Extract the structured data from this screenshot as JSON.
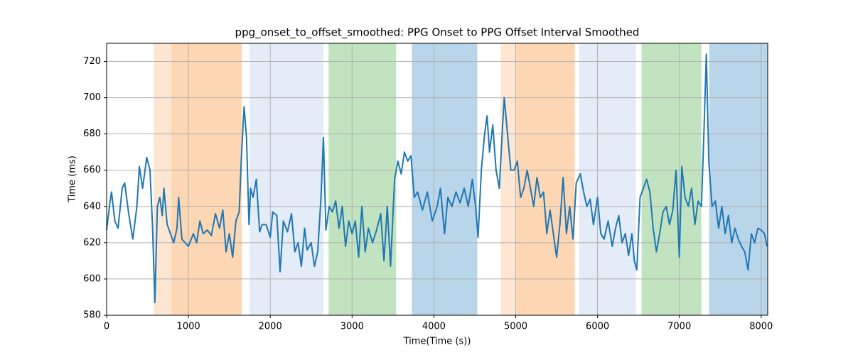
{
  "chart_data": {
    "type": "line",
    "title": "ppg_onset_to_offset_smoothed: PPG Onset to PPG Offset Interval Smoothed",
    "x_label": "Time(Time (s))",
    "y_label": "Time (ms)",
    "color": "#1f77b4",
    "grid": true,
    "xlim": [
      0,
      8080
    ],
    "ylim": [
      580,
      730
    ],
    "xticks": [
      0,
      1000,
      2000,
      3000,
      4000,
      5000,
      6000,
      7000,
      8000
    ],
    "yticks": [
      580,
      600,
      620,
      640,
      660,
      680,
      700,
      720
    ],
    "spans": [
      {
        "start": 574,
        "end": 791,
        "color": "#fde6d2"
      },
      {
        "start": 791,
        "end": 1652,
        "color": "#fdd7b4"
      },
      {
        "start": 1748,
        "end": 2652,
        "color": "#e4ecf7"
      },
      {
        "start": 2713,
        "end": 3539,
        "color": "#c1e3c0"
      },
      {
        "start": 3730,
        "end": 4530,
        "color": "#b9d5e9"
      },
      {
        "start": 4817,
        "end": 5009,
        "color": "#fde6d2"
      },
      {
        "start": 5009,
        "end": 5722,
        "color": "#fdd7b4"
      },
      {
        "start": 5774,
        "end": 6470,
        "color": "#e4ecf7"
      },
      {
        "start": 6539,
        "end": 7270,
        "color": "#c1e3c0"
      },
      {
        "start": 7365,
        "end": 8080,
        "color": "#b9d5e9"
      }
    ],
    "x": [
      0,
      40,
      60,
      100,
      140,
      190,
      220,
      270,
      320,
      370,
      400,
      440,
      490,
      530,
      560,
      590,
      620,
      650,
      680,
      700,
      740,
      780,
      820,
      860,
      880,
      920,
      960,
      1000,
      1060,
      1100,
      1140,
      1180,
      1230,
      1280,
      1330,
      1380,
      1420,
      1460,
      1500,
      1540,
      1580,
      1620,
      1650,
      1680,
      1710,
      1740,
      1760,
      1790,
      1830,
      1870,
      1900,
      1950,
      2000,
      2030,
      2080,
      2120,
      2160,
      2210,
      2260,
      2300,
      2340,
      2380,
      2420,
      2450,
      2500,
      2540,
      2580,
      2620,
      2650,
      2680,
      2720,
      2760,
      2800,
      2840,
      2880,
      2920,
      2960,
      3000,
      3040,
      3080,
      3120,
      3160,
      3200,
      3250,
      3300,
      3350,
      3390,
      3430,
      3470,
      3520,
      3560,
      3600,
      3640,
      3680,
      3720,
      3760,
      3800,
      3860,
      3920,
      3980,
      4040,
      4080,
      4130,
      4170,
      4220,
      4270,
      4320,
      4370,
      4420,
      4470,
      4510,
      4540,
      4580,
      4620,
      4650,
      4680,
      4720,
      4760,
      4800,
      4840,
      4860,
      4900,
      4940,
      4980,
      5020,
      5060,
      5100,
      5140,
      5180,
      5220,
      5260,
      5300,
      5340,
      5380,
      5420,
      5460,
      5500,
      5540,
      5580,
      5620,
      5660,
      5700,
      5740,
      5790,
      5830,
      5870,
      5910,
      5950,
      6000,
      6040,
      6080,
      6130,
      6180,
      6220,
      6260,
      6300,
      6340,
      6380,
      6420,
      6450,
      6480,
      6520,
      6560,
      6600,
      6640,
      6680,
      6720,
      6760,
      6800,
      6840,
      6880,
      6920,
      6960,
      7000,
      7030,
      7070,
      7110,
      7150,
      7190,
      7230,
      7270,
      7300,
      7330,
      7360,
      7400,
      7440,
      7480,
      7520,
      7560,
      7600,
      7640,
      7680,
      7720,
      7760,
      7800,
      7840,
      7880,
      7920,
      7960,
      8000,
      8040,
      8070
    ],
    "values": [
      627,
      642,
      648,
      632,
      628,
      650,
      653,
      636,
      622,
      640,
      662,
      650,
      667,
      660,
      630,
      587,
      640,
      645,
      635,
      650,
      630,
      625,
      620,
      628,
      645,
      622,
      620,
      618,
      625,
      620,
      632,
      625,
      627,
      624,
      636,
      628,
      638,
      615,
      625,
      612,
      632,
      637,
      670,
      695,
      678,
      630,
      650,
      645,
      655,
      626,
      630,
      630,
      623,
      637,
      635,
      604,
      632,
      626,
      636,
      615,
      620,
      607,
      628,
      616,
      620,
      607,
      615,
      645,
      678,
      627,
      640,
      637,
      643,
      628,
      640,
      618,
      632,
      625,
      632,
      612,
      640,
      615,
      628,
      620,
      627,
      636,
      610,
      640,
      607,
      655,
      665,
      658,
      670,
      665,
      668,
      645,
      648,
      638,
      648,
      632,
      640,
      650,
      625,
      645,
      640,
      648,
      642,
      650,
      640,
      655,
      640,
      623,
      660,
      680,
      690,
      670,
      685,
      660,
      650,
      685,
      700,
      680,
      660,
      660,
      665,
      645,
      650,
      660,
      650,
      640,
      656,
      645,
      648,
      625,
      638,
      625,
      612,
      630,
      656,
      625,
      640,
      622,
      653,
      658,
      648,
      640,
      644,
      630,
      645,
      625,
      622,
      632,
      618,
      628,
      635,
      620,
      625,
      613,
      625,
      610,
      605,
      645,
      650,
      655,
      648,
      628,
      615,
      625,
      637,
      640,
      630,
      638,
      660,
      612,
      662,
      645,
      640,
      650,
      630,
      643,
      640,
      680,
      724,
      665,
      640,
      643,
      628,
      640,
      625,
      635,
      620,
      628,
      622,
      618,
      615,
      605,
      625,
      620,
      628,
      627,
      625,
      618
    ]
  }
}
